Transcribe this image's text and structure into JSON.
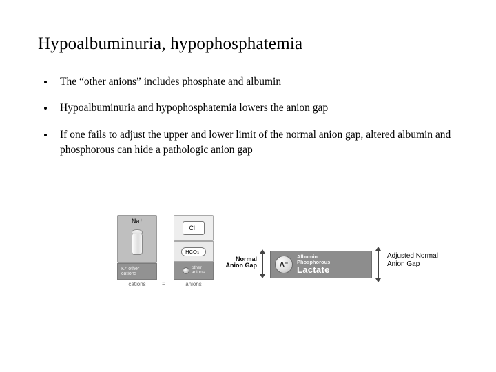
{
  "title": "Hypoalbuminuria, hypophosphatemia",
  "bullets": [
    "The “other anions” includes phosphate and albumin",
    "Hypoalbuminuria and hypophosphatemia lowers the anion gap",
    "If one fails to adjust the upper and lower limit of the normal anion gap, altered albumin and phosphorous can hide a pathologic anion gap"
  ],
  "diagram": {
    "na_label": "Na⁺",
    "k_label_line1": "K⁺ other",
    "k_label_line2": "cations",
    "cations_caption": "cations",
    "equals": "=",
    "cl_label": "Cl⁻",
    "hco3_label": "HCO₃⁻",
    "other_anions_line1": "other",
    "other_anions_line2": "anions",
    "anions_caption": "anions",
    "normal_ag_line1": "Normal",
    "normal_ag_line2": "Anion Gap",
    "a_minus": "A⁻",
    "wide_small1": "Albumin",
    "wide_small2": "Phosphorous",
    "wide_big": "Lactate",
    "adjusted_line1": "Adjusted Normal",
    "adjusted_line2": "Anion Gap"
  },
  "colors": {
    "bg": "#ffffff",
    "text": "#000000",
    "box_light": "#eeeeee",
    "box_mid": "#bfbfbf",
    "box_dark": "#929292",
    "wide": "#8d8d8d",
    "border": "#9b9b9b"
  }
}
